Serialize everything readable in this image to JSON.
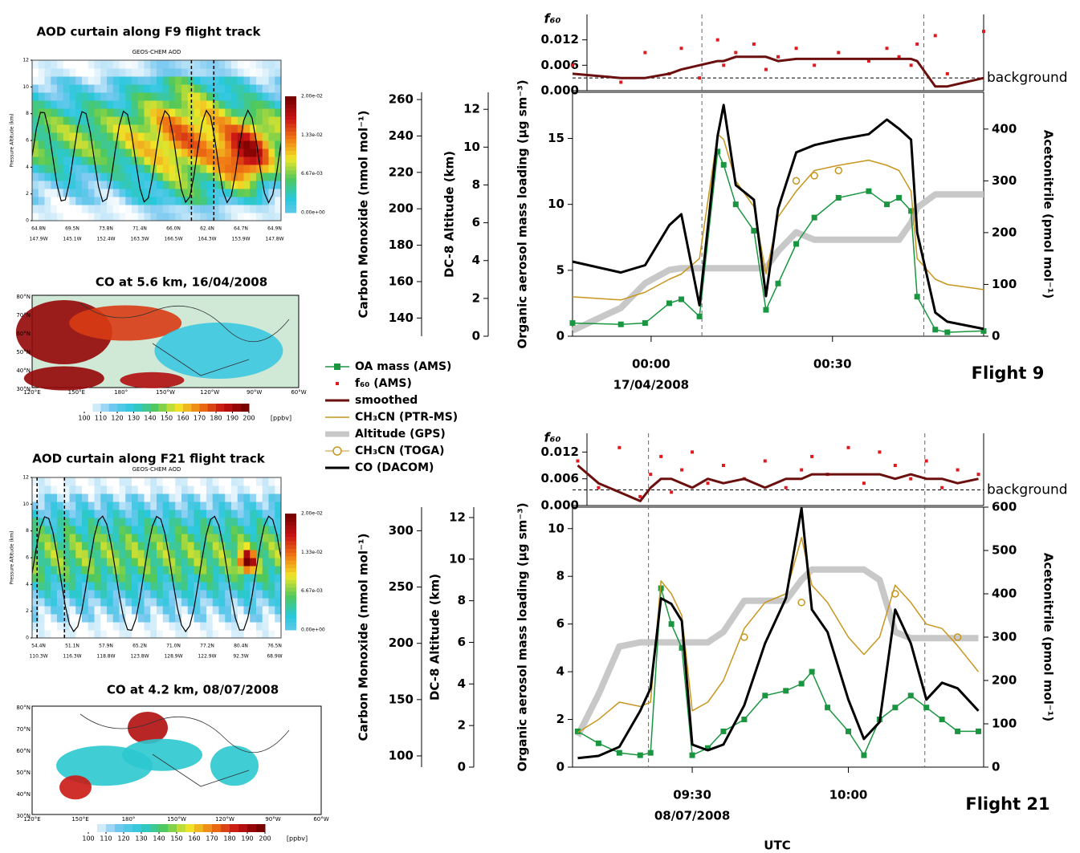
{
  "aod_panels": [
    {
      "title": "AOD curtain along F9 flight track",
      "subtitle": "GEOS-CHEM AOD",
      "y_label": "Pressure Altitude (km)",
      "yticks": [
        0,
        2,
        4,
        6,
        8,
        10,
        12
      ],
      "lat_labels": [
        "64.8N",
        "69.5N",
        "73.8N",
        "71.4N",
        "66.0N",
        "62.4N",
        "64.7N",
        "64.9N"
      ],
      "lon_labels": [
        "147.9W",
        "145.1W",
        "152.4W",
        "163.3W",
        "166.5W",
        "164.3W",
        "153.9W",
        "147.8W"
      ],
      "colorbar": [
        "2.00e-02",
        "1.33e-02",
        "6.67e-03",
        "0.00e+00"
      ]
    },
    {
      "title": "AOD curtain along F21 flight track",
      "subtitle": "GEOS-CHEM AOD",
      "y_label": "Pressure Altitude (km)",
      "yticks": [
        0,
        2,
        4,
        6,
        8,
        10,
        12
      ],
      "lat_labels": [
        "54.4N",
        "51.1N",
        "57.9N",
        "65.2N",
        "71.0N",
        "77.2N",
        "80.4N",
        "76.5N"
      ],
      "lon_labels": [
        "110.3W",
        "116.3W",
        "118.8W",
        "123.8W",
        "128.9W",
        "122.9W",
        "92.3W",
        "68.9W"
      ],
      "colorbar": [
        "2.00e-02",
        "1.33e-02",
        "6.67e-03",
        "0.00e+00"
      ]
    }
  ],
  "maps": [
    {
      "title": "CO at 5.6 km, 16/04/2008",
      "lat_labels": [
        "80°N",
        "70°N",
        "60°N",
        "50°N",
        "40°N",
        "30°N"
      ],
      "lon_labels": [
        "120°E",
        "150°E",
        "180°",
        "150°W",
        "120°W",
        "90°W",
        "60°W"
      ],
      "colorbar": [
        100,
        110,
        120,
        130,
        140,
        150,
        160,
        170,
        180,
        190,
        200
      ],
      "unit": "[ppbv]"
    },
    {
      "title": "CO at 4.2 km, 08/07/2008",
      "lat_labels": [
        "80°N",
        "70°N",
        "60°N",
        "50°N",
        "40°N",
        "30°N"
      ],
      "lon_labels": [
        "120°E",
        "150°E",
        "180°",
        "150°W",
        "120°W",
        "90°W",
        "60°W"
      ],
      "colorbar": [
        100,
        110,
        120,
        130,
        140,
        150,
        160,
        170,
        180,
        190,
        200
      ],
      "unit": "[ppbv]"
    }
  ],
  "chart_data": [
    {
      "type": "line",
      "title": "Flight 9",
      "date": "17/04/2008",
      "x": [
        -13,
        -5,
        -1,
        3,
        5,
        8,
        11,
        12,
        14,
        17,
        19,
        21,
        24,
        27,
        31,
        36,
        39,
        41,
        43,
        44,
        47,
        49,
        55
      ],
      "xlim": [
        -13,
        55
      ],
      "xticks": [
        {
          "value": 0,
          "label": "00:00"
        },
        {
          "value": 30,
          "label": "00:30"
        }
      ],
      "vlines": [
        8.4,
        45.1
      ],
      "ylabel": "Organic aerosol mass loading (μg sm⁻³)",
      "ylim": [
        0,
        18.5
      ],
      "yticks": [
        0,
        5,
        10,
        15
      ],
      "y2label": "Acetonitrile (pmol mol⁻¹)",
      "y2lim": [
        0,
        471
      ],
      "y2ticks": [
        0,
        100,
        200,
        300,
        400
      ],
      "y3label": "DC-8 Altitude (km)",
      "y3lim": [
        0,
        12.9
      ],
      "y3ticks": [
        0,
        2,
        4,
        6,
        8,
        10,
        12
      ],
      "y4label": "Carbon Monoxide (nmol mol⁻¹)",
      "y4lim": [
        130,
        264
      ],
      "y4ticks": [
        140,
        160,
        180,
        200,
        220,
        240,
        260
      ],
      "y5label": "f₆₀",
      "y5lim": [
        0,
        0.018
      ],
      "y5ticks": [
        {
          "value": 0,
          "label": "0.000"
        },
        {
          "value": 0.006,
          "label": "0.006"
        },
        {
          "value": 0.012,
          "label": "0.012"
        }
      ],
      "background": 0.003,
      "background_label": "background",
      "series": [
        {
          "name": "OA mass (AMS)",
          "color": "#1a9641",
          "axis": "y",
          "marker": "square",
          "line_width": 1.5,
          "values": [
            1.0,
            0.9,
            1.0,
            2.5,
            2.8,
            1.5,
            14,
            13,
            10,
            8,
            2,
            4,
            7,
            9,
            10.5,
            11,
            10,
            10.5,
            9.5,
            3,
            0.5,
            0.3,
            0.4
          ]
        },
        {
          "name": "f₆₀ (AMS)",
          "color": "#e0191e",
          "axis": "y5",
          "marker": "dot",
          "line_width": 0,
          "values": [
            0.006,
            0.002,
            0.009,
            0.004,
            0.01,
            0.003,
            0.012,
            0.006,
            0.009,
            0.011,
            0.005,
            0.008,
            0.01,
            0.006,
            0.009,
            0.007,
            0.01,
            0.008,
            0.006,
            0.011,
            0.013,
            0.004,
            0.014
          ]
        },
        {
          "name": "smoothed",
          "color": "#6b0f0f",
          "axis": "y5",
          "marker": "none",
          "line_width": 3,
          "values": [
            0.004,
            0.003,
            0.003,
            0.004,
            0.005,
            0.006,
            0.007,
            0.007,
            0.008,
            0.008,
            0.008,
            0.007,
            0.0075,
            0.0075,
            0.0075,
            0.0075,
            0.0075,
            0.0075,
            0.0075,
            0.007,
            0.001,
            0.001,
            0.003
          ]
        },
        {
          "name": "CH₃CN (PTR-MS)",
          "color": "#c8961e",
          "axis": "y2",
          "marker": "none",
          "line_width": 1.5,
          "values": [
            76,
            70,
            85,
            110,
            120,
            150,
            390,
            380,
            300,
            250,
            120,
            230,
            280,
            320,
            330,
            340,
            330,
            320,
            280,
            150,
            110,
            100,
            90
          ]
        },
        {
          "name": "Altitude (GPS)",
          "color": "#c8c8c8",
          "axis": "y3",
          "marker": "none",
          "line_width": 8,
          "values": [
            0.3,
            1.5,
            2.8,
            3.5,
            3.6,
            3.6,
            3.6,
            3.6,
            3.6,
            3.6,
            3.6,
            4.5,
            5.5,
            5.1,
            5.1,
            5.1,
            5.1,
            5.1,
            6.0,
            6.8,
            7.5,
            7.5,
            7.5
          ]
        },
        {
          "name": "CH₃CN (TOGA)",
          "color": "#c8961e",
          "axis": "y2",
          "marker": "circle",
          "line_width": 0,
          "values": [
            null,
            null,
            null,
            null,
            null,
            null,
            null,
            null,
            null,
            null,
            null,
            null,
            300,
            310,
            320,
            null,
            null,
            null,
            null,
            null,
            null,
            null,
            null
          ]
        },
        {
          "name": "CO (DACOM)",
          "color": "#000000",
          "axis": "y4",
          "marker": "none",
          "line_width": 3,
          "values": [
            171,
            165,
            169,
            191,
            197,
            147,
            240,
            257,
            213,
            205,
            152,
            200,
            231,
            235,
            238,
            241,
            249,
            244,
            238,
            187,
            143,
            138,
            134
          ]
        }
      ]
    },
    {
      "type": "line",
      "title": "Flight 21",
      "date": "08/07/2008",
      "xlabel": "UTC",
      "x": [
        548,
        552,
        556,
        560,
        562,
        564,
        566,
        568,
        570,
        573,
        576,
        580,
        584,
        588,
        591,
        593,
        596,
        600,
        603,
        606,
        609,
        612,
        615,
        618,
        621,
        625
      ],
      "xlim": [
        547,
        626
      ],
      "xticks": [
        {
          "value": 570,
          "label": "09:30"
        },
        {
          "value": 600,
          "label": "10:00"
        }
      ],
      "vlines": [
        561.6,
        614.7
      ],
      "ylabel": "Organic aerosol mass loading (μg sm⁻³)",
      "ylim": [
        0,
        10.9
      ],
      "yticks": [
        0,
        2,
        4,
        6,
        8,
        10
      ],
      "y2label": "Acetonitrile (pmol mol⁻¹)",
      "y2lim": [
        0,
        600
      ],
      "y2ticks": [
        0,
        100,
        200,
        300,
        400,
        500,
        600
      ],
      "y3label": "DC-8 Altitude (km)",
      "y3lim": [
        0,
        12.5
      ],
      "y3ticks": [
        0,
        2,
        4,
        6,
        8,
        10,
        12
      ],
      "y4label": "Carbon Monoxide (nmol mol⁻¹)",
      "y4lim": [
        90,
        321
      ],
      "y4ticks": [
        100,
        150,
        200,
        250,
        300
      ],
      "y5label": "f₆₀",
      "y5lim": [
        0,
        0.0162
      ],
      "y5ticks": [
        {
          "value": 0,
          "label": "0.000"
        },
        {
          "value": 0.006,
          "label": "0.006"
        },
        {
          "value": 0.012,
          "label": "0.012"
        }
      ],
      "background": 0.0035,
      "background_label": "background",
      "series": [
        {
          "name": "OA mass (AMS)",
          "color": "#1a9641",
          "axis": "y",
          "marker": "square",
          "line_width": 1.5,
          "values": [
            1.5,
            1.0,
            0.6,
            0.5,
            0.6,
            7.5,
            6.0,
            5.0,
            0.5,
            0.8,
            1.5,
            2.0,
            3.0,
            3.2,
            3.5,
            4.0,
            2.5,
            1.5,
            0.5,
            2.0,
            2.5,
            3.0,
            2.5,
            2.0,
            1.5,
            1.5
          ]
        },
        {
          "name": "f₆₀ (AMS)",
          "color": "#e0191e",
          "axis": "y5",
          "marker": "dot",
          "line_width": 0,
          "values": [
            0.01,
            0.004,
            0.013,
            0.002,
            0.007,
            0.011,
            0.003,
            0.008,
            0.012,
            0.005,
            0.009,
            0.006,
            0.01,
            0.004,
            0.008,
            0.011,
            0.007,
            0.013,
            0.005,
            0.012,
            0.009,
            0.006,
            0.01,
            0.004,
            0.008,
            0.007
          ]
        },
        {
          "name": "smoothed",
          "color": "#6b0f0f",
          "axis": "y5",
          "marker": "none",
          "line_width": 3,
          "values": [
            0.009,
            0.005,
            0.003,
            0.001,
            0.004,
            0.006,
            0.006,
            0.005,
            0.004,
            0.006,
            0.005,
            0.006,
            0.004,
            0.006,
            0.006,
            0.007,
            0.007,
            0.007,
            0.007,
            0.007,
            0.006,
            0.007,
            0.006,
            0.006,
            0.005,
            0.006
          ]
        },
        {
          "name": "CH₃CN (PTR-MS)",
          "color": "#c8961e",
          "axis": "y2",
          "marker": "none",
          "line_width": 1.5,
          "values": [
            80,
            110,
            150,
            140,
            150,
            430,
            400,
            350,
            130,
            150,
            200,
            320,
            380,
            400,
            530,
            420,
            380,
            300,
            260,
            300,
            420,
            380,
            330,
            320,
            280,
            220
          ]
        },
        {
          "name": "Altitude (GPS)",
          "color": "#c8c8c8",
          "axis": "y3",
          "marker": "none",
          "line_width": 8,
          "values": [
            1.5,
            3.5,
            5.8,
            6.0,
            6.0,
            6.0,
            6.0,
            6.0,
            6.0,
            6.0,
            6.5,
            8.0,
            8.0,
            8.0,
            9.0,
            9.5,
            9.5,
            9.5,
            9.5,
            9.0,
            6.5,
            6.2,
            6.2,
            6.2,
            6.2,
            6.2
          ]
        },
        {
          "name": "CH₃CN (TOGA)",
          "color": "#c8961e",
          "axis": "y2",
          "marker": "circle",
          "line_width": 0,
          "values": [
            null,
            null,
            null,
            null,
            null,
            null,
            null,
            null,
            null,
            null,
            null,
            300,
            null,
            null,
            380,
            null,
            null,
            null,
            null,
            null,
            400,
            null,
            null,
            null,
            300,
            null
          ]
        },
        {
          "name": "CO (DACOM)",
          "color": "#000000",
          "axis": "y4",
          "marker": "none",
          "line_width": 3,
          "values": [
            98,
            100,
            108,
            140,
            160,
            240,
            235,
            220,
            110,
            105,
            110,
            145,
            200,
            240,
            320,
            230,
            210,
            150,
            115,
            130,
            230,
            200,
            150,
            165,
            160,
            140
          ]
        }
      ]
    }
  ]
}
